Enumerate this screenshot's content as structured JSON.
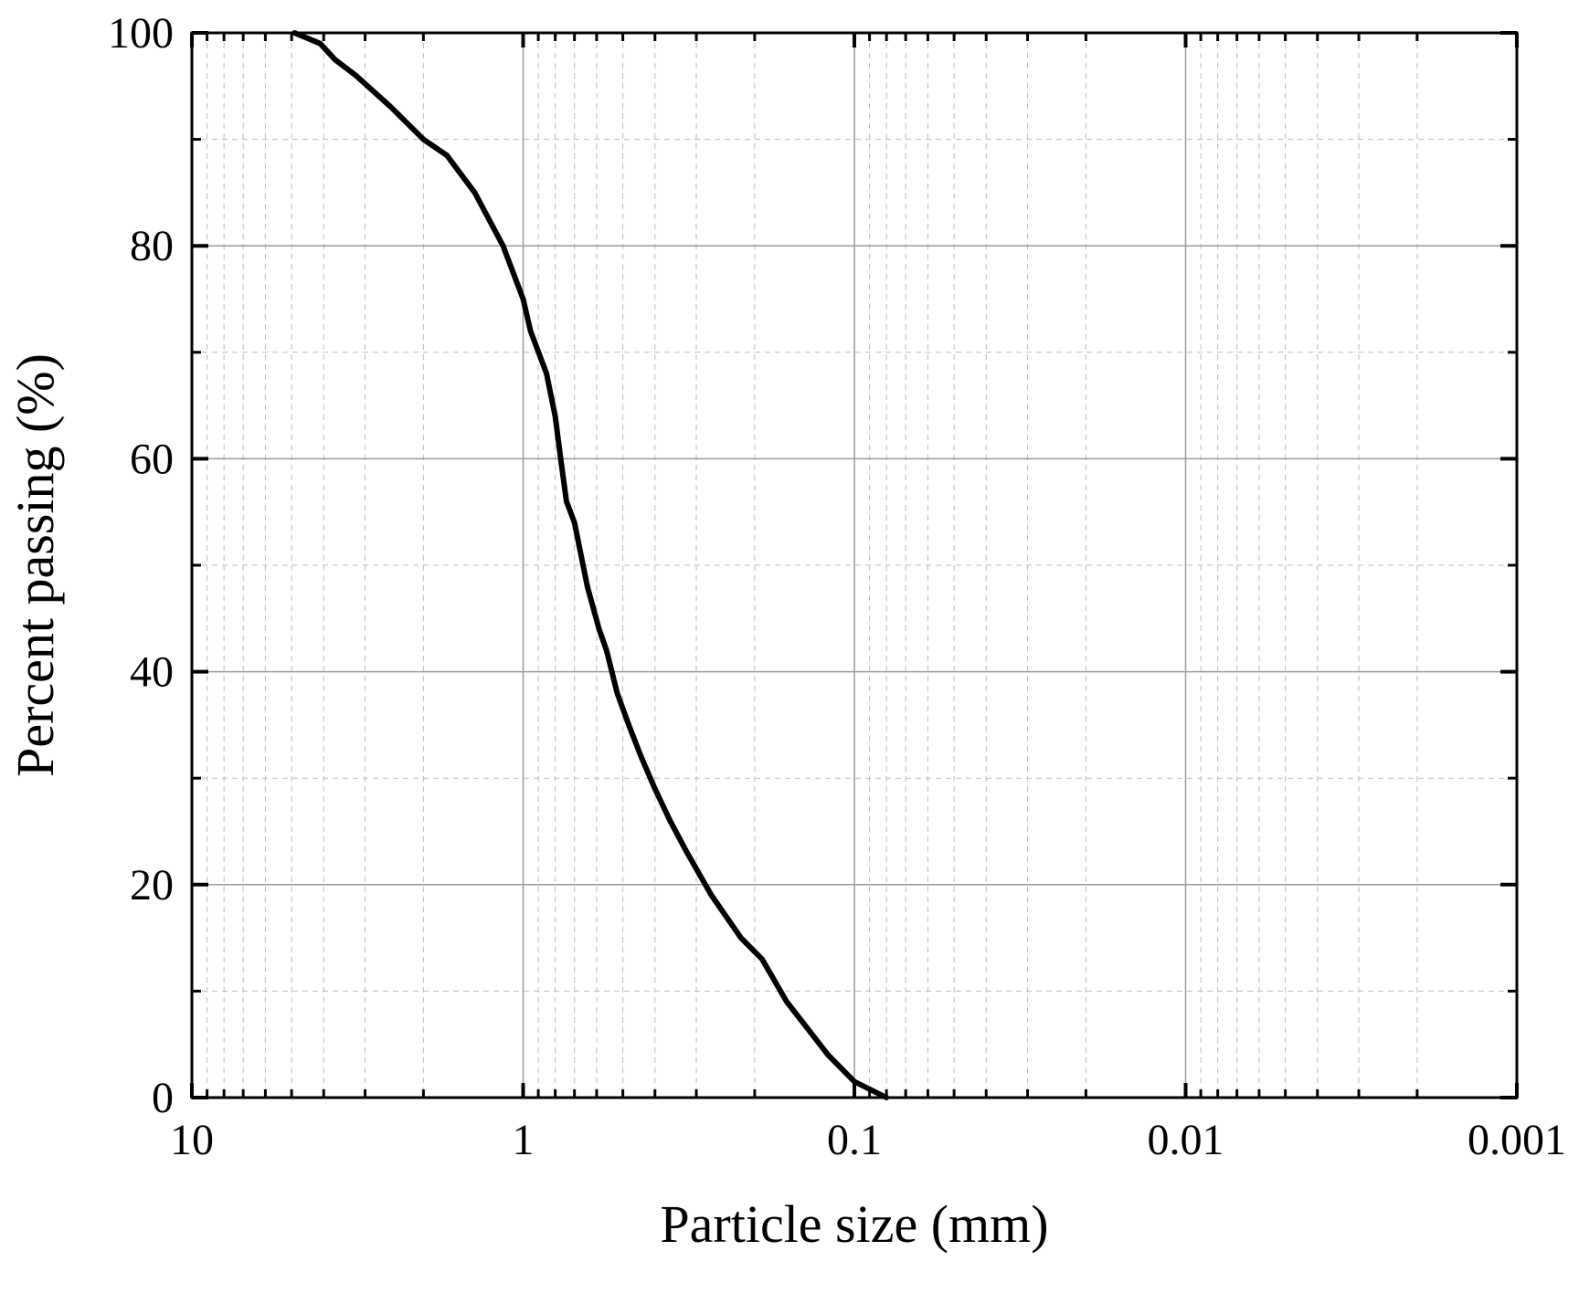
{
  "chart_data": {
    "type": "line",
    "title": "",
    "xlabel": "Particle size (mm)",
    "ylabel": "Percent passing (%)",
    "x_scale": "log",
    "x_reversed": true,
    "xlim": [
      10,
      0.001
    ],
    "ylim": [
      0,
      100
    ],
    "grid": true,
    "x_ticks": [
      10,
      1,
      0.1,
      0.01,
      0.001
    ],
    "x_tick_labels": [
      "10",
      "1",
      "0.1",
      "0.01",
      "0.001"
    ],
    "y_ticks": [
      0,
      20,
      40,
      60,
      80,
      100
    ],
    "y_tick_labels": [
      "0",
      "20",
      "40",
      "60",
      "80",
      "100"
    ],
    "series": [
      {
        "color": "#000000",
        "x": [
          4.9,
          4.1,
          3.7,
          3.2,
          2.5,
          2.0,
          1.7,
          1.4,
          1.15,
          1.0,
          0.95,
          0.85,
          0.8,
          0.77,
          0.74,
          0.7,
          0.64,
          0.59,
          0.56,
          0.52,
          0.48,
          0.44,
          0.4,
          0.36,
          0.32,
          0.27,
          0.22,
          0.19,
          0.16,
          0.12,
          0.1,
          0.08
        ],
        "y": [
          100,
          99,
          97.5,
          96,
          93,
          90,
          88.5,
          85,
          80,
          75,
          72,
          68,
          64,
          60,
          56,
          54,
          48,
          44,
          42,
          38,
          35,
          32,
          29,
          26,
          23,
          19,
          15,
          13,
          9,
          4,
          1.5,
          0
        ]
      }
    ]
  }
}
